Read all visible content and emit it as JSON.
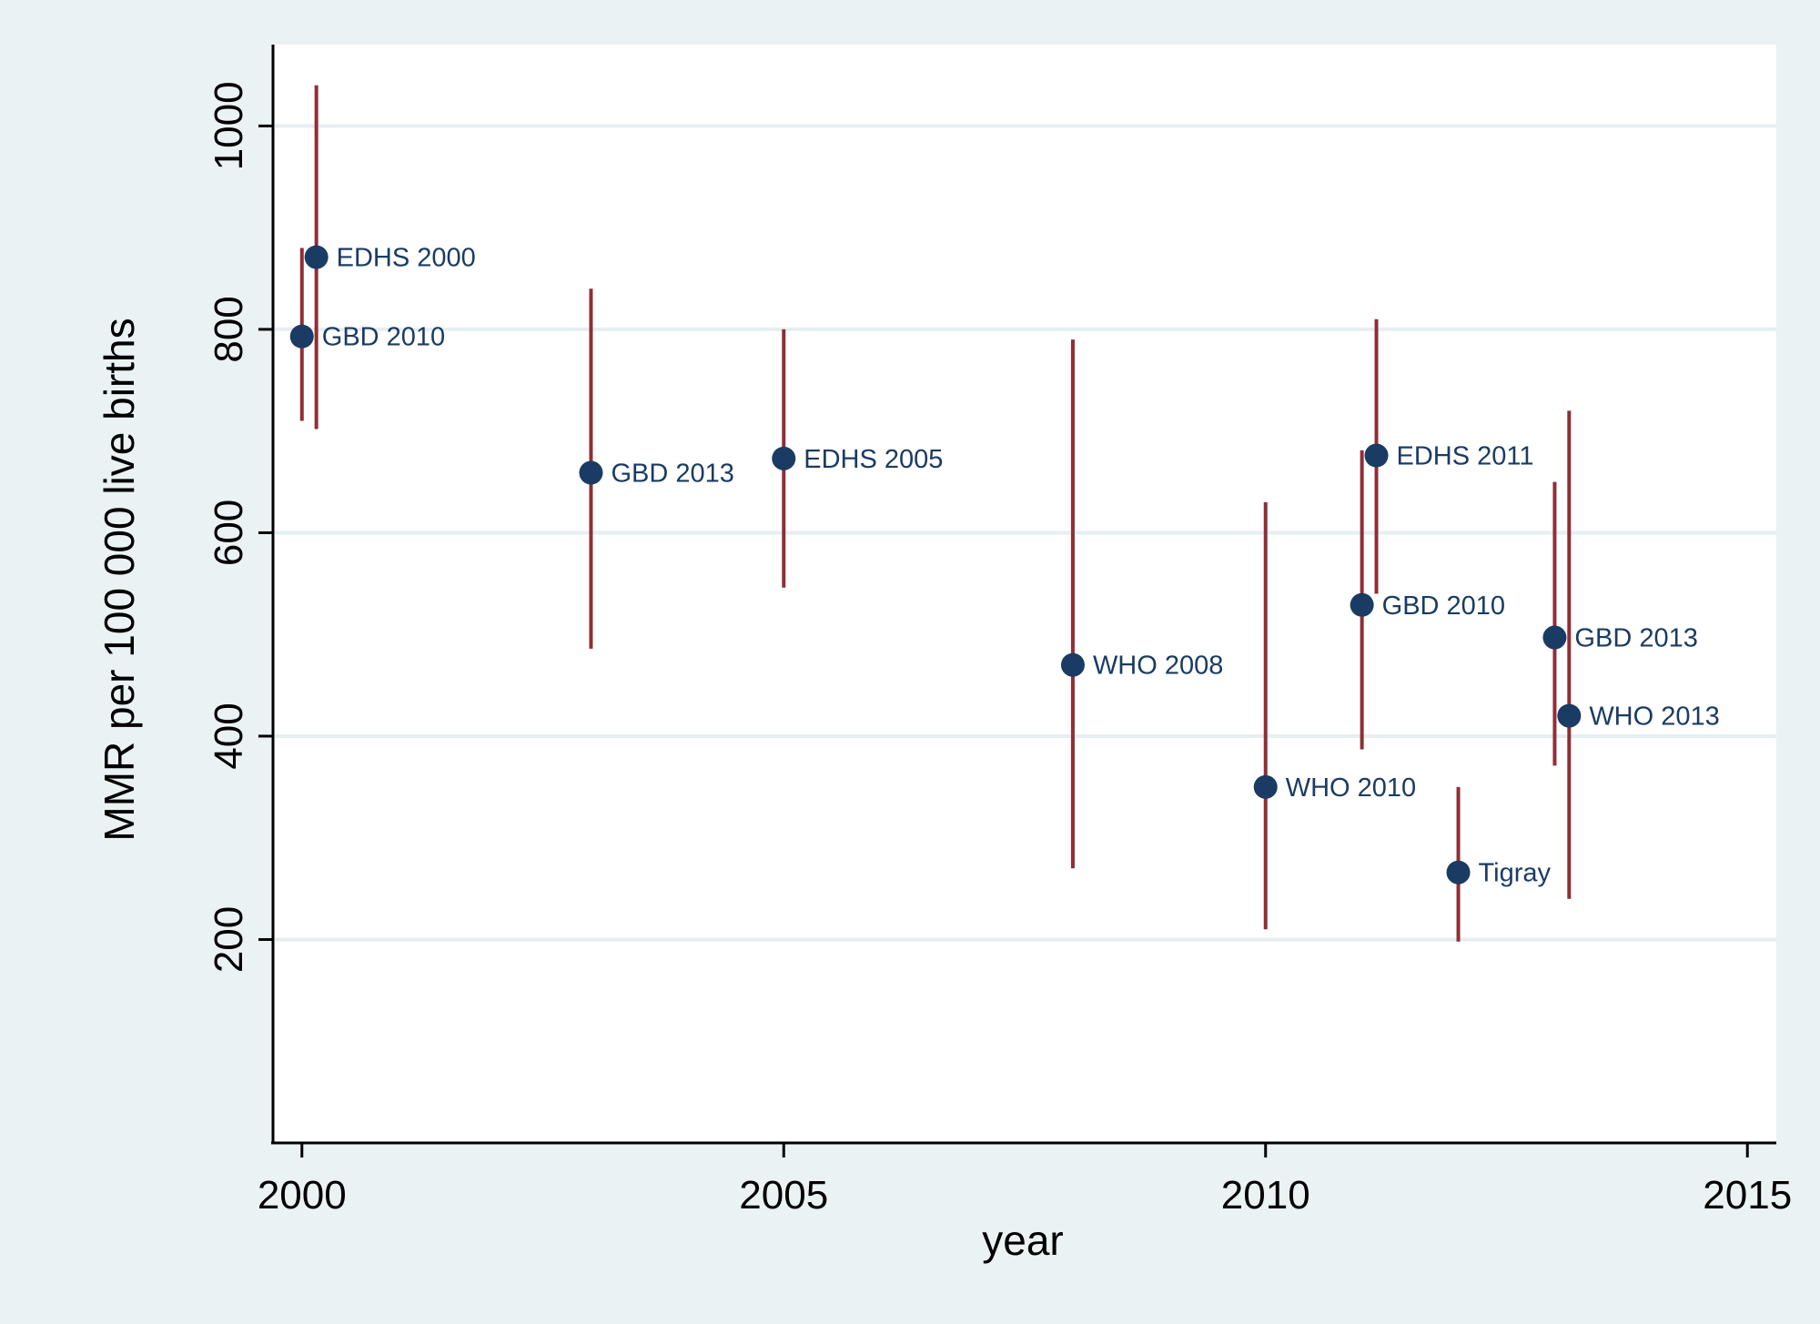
{
  "chart_data": {
    "type": "scatter",
    "title": "",
    "xlabel": "year",
    "ylabel": "MMR per 100 000 live births",
    "xlim": [
      1999.7,
      2015.3
    ],
    "ylim": [
      0,
      1080
    ],
    "xticks": [
      2000,
      2005,
      2010,
      2015
    ],
    "yticks": [
      200,
      400,
      600,
      800,
      1000
    ],
    "grid": "horizontal",
    "colors": {
      "background": "#eaf2f3",
      "plot_background": "#ffffff",
      "gridline": "#e6eef0",
      "marker": "#1a3b63",
      "error_bar": "#8f2e36",
      "label": "#1a3b63",
      "axis": "#000000"
    },
    "points": [
      {
        "label": "GBD 2010",
        "x": 2000.0,
        "y": 793,
        "low": 710,
        "high": 880
      },
      {
        "label": "EDHS 2000",
        "x": 2000.15,
        "y": 871,
        "low": 702,
        "high": 1040
      },
      {
        "label": "GBD 2013",
        "x": 2003.0,
        "y": 659,
        "low": 486,
        "high": 840
      },
      {
        "label": "EDHS 2005",
        "x": 2005.0,
        "y": 673,
        "low": 546,
        "high": 800
      },
      {
        "label": "WHO 2008",
        "x": 2008.0,
        "y": 470,
        "low": 270,
        "high": 790
      },
      {
        "label": "WHO 2010",
        "x": 2010.0,
        "y": 350,
        "low": 210,
        "high": 630
      },
      {
        "label": "GBD 2010",
        "x": 2011.0,
        "y": 529,
        "low": 387,
        "high": 681
      },
      {
        "label": "EDHS 2011",
        "x": 2011.15,
        "y": 676,
        "low": 540,
        "high": 810
      },
      {
        "label": "Tigray",
        "x": 2012.0,
        "y": 266,
        "low": 198,
        "high": 350
      },
      {
        "label": "GBD 2013",
        "x": 2013.0,
        "y": 497,
        "low": 371,
        "high": 650
      },
      {
        "label": "WHO 2013",
        "x": 2013.15,
        "y": 420,
        "low": 240,
        "high": 720
      }
    ]
  }
}
